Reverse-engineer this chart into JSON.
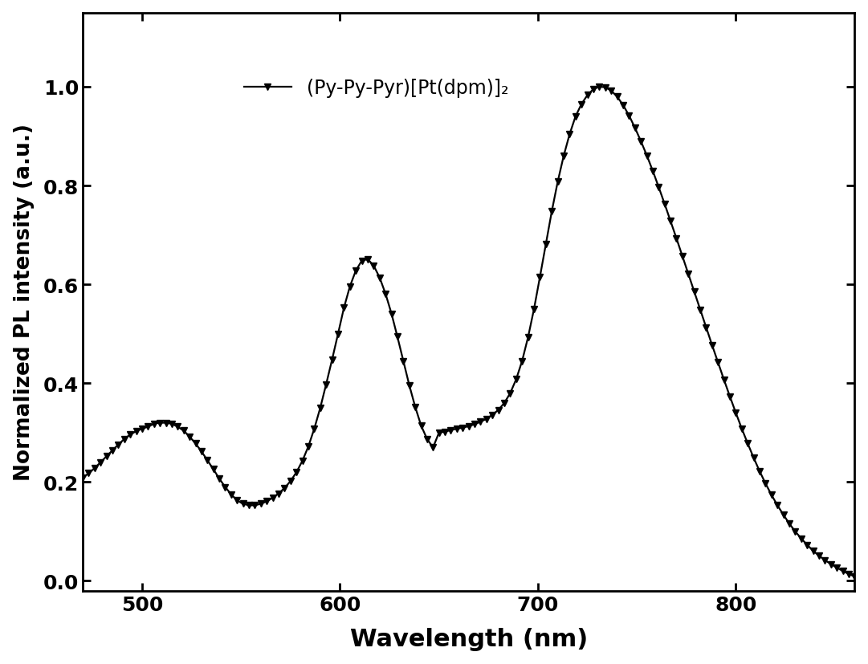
{
  "xlabel": "Wavelength (nm)",
  "ylabel": "Normalized PL intensity (a.u.)",
  "legend_label": "(Py-Py-Pyr)[Pt(dpm)]₂",
  "xlim": [
    470,
    860
  ],
  "ylim": [
    -0.02,
    1.15
  ],
  "xticks": [
    500,
    600,
    700,
    800
  ],
  "yticks": [
    0.0,
    0.2,
    0.4,
    0.6,
    0.8,
    1.0
  ],
  "line_color": "#000000",
  "marker": "v",
  "markersize": 6,
  "linewidth": 1.6,
  "x": [
    470,
    473,
    476,
    479,
    482,
    485,
    488,
    491,
    494,
    497,
    500,
    503,
    506,
    509,
    512,
    515,
    518,
    521,
    524,
    527,
    530,
    533,
    536,
    539,
    542,
    545,
    548,
    551,
    554,
    557,
    560,
    563,
    566,
    569,
    572,
    575,
    578,
    581,
    584,
    587,
    590,
    593,
    596,
    599,
    602,
    605,
    608,
    611,
    614,
    617,
    620,
    623,
    626,
    629,
    632,
    635,
    638,
    641,
    644,
    647,
    650,
    653,
    656,
    659,
    662,
    665,
    668,
    671,
    674,
    677,
    680,
    683,
    686,
    689,
    692,
    695,
    698,
    701,
    704,
    707,
    710,
    713,
    716,
    719,
    722,
    725,
    728,
    731,
    734,
    737,
    740,
    743,
    746,
    749,
    752,
    755,
    758,
    761,
    764,
    767,
    770,
    773,
    776,
    779,
    782,
    785,
    788,
    791,
    794,
    797,
    800,
    803,
    806,
    809,
    812,
    815,
    818,
    821,
    824,
    827,
    830,
    833,
    836,
    839,
    842,
    845,
    848,
    851,
    854,
    857,
    860
  ],
  "y": [
    0.208,
    0.218,
    0.228,
    0.24,
    0.252,
    0.264,
    0.276,
    0.287,
    0.296,
    0.303,
    0.308,
    0.312,
    0.318,
    0.32,
    0.32,
    0.318,
    0.312,
    0.304,
    0.292,
    0.278,
    0.262,
    0.244,
    0.226,
    0.207,
    0.19,
    0.175,
    0.163,
    0.156,
    0.153,
    0.153,
    0.156,
    0.161,
    0.168,
    0.177,
    0.188,
    0.202,
    0.22,
    0.243,
    0.272,
    0.308,
    0.35,
    0.398,
    0.448,
    0.5,
    0.553,
    0.596,
    0.628,
    0.648,
    0.651,
    0.638,
    0.614,
    0.581,
    0.541,
    0.494,
    0.445,
    0.396,
    0.352,
    0.314,
    0.287,
    0.27,
    0.3,
    0.302,
    0.305,
    0.308,
    0.31,
    0.313,
    0.317,
    0.322,
    0.328,
    0.336,
    0.346,
    0.36,
    0.38,
    0.408,
    0.445,
    0.493,
    0.55,
    0.615,
    0.682,
    0.748,
    0.808,
    0.86,
    0.904,
    0.94,
    0.965,
    0.983,
    0.995,
    1.0,
    0.999,
    0.992,
    0.98,
    0.963,
    0.942,
    0.917,
    0.89,
    0.861,
    0.83,
    0.797,
    0.763,
    0.728,
    0.693,
    0.657,
    0.621,
    0.585,
    0.549,
    0.513,
    0.477,
    0.442,
    0.407,
    0.373,
    0.34,
    0.308,
    0.278,
    0.249,
    0.222,
    0.197,
    0.174,
    0.153,
    0.134,
    0.116,
    0.1,
    0.086,
    0.073,
    0.061,
    0.051,
    0.042,
    0.034,
    0.027,
    0.02,
    0.014,
    0.009
  ]
}
